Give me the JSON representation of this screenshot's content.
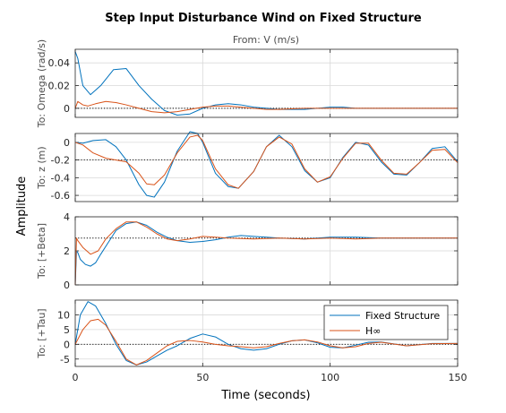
{
  "figure": {
    "title": "Step Input Disturbance Wind on Fixed Structure",
    "subtitle": "From: V (m/s)",
    "ylabel": "Amplitude",
    "xlabel": "Time (seconds)"
  },
  "legend": {
    "placement": "inside lower axes, top-right",
    "entries": [
      "Fixed Structure",
      "H∞"
    ]
  },
  "colors": {
    "fixed_structure": "#0072bd",
    "hinf": "#d95319",
    "grid": "#d9d9d9",
    "axes": "#262626",
    "steady_state_line": "#000000"
  },
  "chart_data": {
    "type": "line",
    "x_axis": {
      "label": "Time (seconds)",
      "range": [
        0,
        150
      ],
      "ticks": [
        0,
        50,
        100,
        150
      ]
    },
    "grid": true,
    "series_names": [
      "Fixed Structure",
      "H∞"
    ],
    "panels": [
      {
        "ylabel": "To: Omega (rad/s)",
        "ylim": [
          -0.008,
          0.052
        ],
        "yticks": [
          0,
          0.02,
          0.04
        ],
        "yticklabels": [
          "0",
          "0.02",
          "0.04"
        ],
        "steady_state": 0.0,
        "series": [
          {
            "name": "Fixed Structure",
            "x": [
              0,
              1,
              3,
              6,
              10,
              15,
              20,
              25,
              30,
              35,
              40,
              45,
              50,
              55,
              60,
              65,
              70,
              75,
              80,
              85,
              90,
              95,
              100,
              105,
              110,
              115,
              120,
              130,
              140,
              150
            ],
            "y": [
              0.05,
              0.044,
              0.02,
              0.012,
              0.02,
              0.034,
              0.035,
              0.02,
              0.008,
              -0.002,
              -0.006,
              -0.005,
              0.0,
              0.003,
              0.004,
              0.003,
              0.001,
              0.0,
              -0.001,
              -0.001,
              -0.001,
              0.0,
              0.001,
              0.001,
              0.0,
              0.0,
              0.0,
              0.0,
              0.0,
              0.0
            ]
          },
          {
            "name": "H∞",
            "x": [
              0,
              1,
              3,
              5,
              8,
              12,
              16,
              20,
              25,
              30,
              35,
              40,
              45,
              50,
              55,
              60,
              65,
              70,
              75,
              80,
              90,
              100,
              110,
              120,
              130,
              140,
              150
            ],
            "y": [
              0.0,
              0.006,
              0.003,
              0.002,
              0.004,
              0.006,
              0.005,
              0.003,
              0.0,
              -0.003,
              -0.004,
              -0.003,
              -0.001,
              0.001,
              0.002,
              0.002,
              0.001,
              0.0,
              -0.001,
              -0.001,
              0.0,
              0.0,
              0.0,
              0.0,
              0.0,
              0.0,
              0.0
            ]
          }
        ]
      },
      {
        "ylabel": "To: z (m)",
        "ylim": [
          -0.67,
          0.1
        ],
        "yticks": [
          0,
          -0.2,
          -0.4,
          -0.6
        ],
        "yticklabels": [
          "0",
          "-0.2",
          "-0.4",
          "-0.6"
        ],
        "steady_state": -0.2,
        "series": [
          {
            "name": "Fixed Structure",
            "x": [
              0,
              3,
              7,
              12,
              16,
              20,
              25,
              28,
              31,
              35,
              40,
              45,
              48,
              50,
              55,
              60,
              64,
              70,
              75,
              80,
              85,
              90,
              95,
              100,
              105,
              110,
              115,
              120,
              125,
              130,
              135,
              140,
              145,
              150
            ],
            "y": [
              0.0,
              -0.01,
              0.02,
              0.03,
              -0.05,
              -0.2,
              -0.48,
              -0.6,
              -0.62,
              -0.45,
              -0.1,
              0.12,
              0.1,
              0.0,
              -0.35,
              -0.5,
              -0.52,
              -0.33,
              -0.05,
              0.08,
              -0.05,
              -0.32,
              -0.45,
              -0.4,
              -0.17,
              0.0,
              -0.03,
              -0.22,
              -0.36,
              -0.37,
              -0.23,
              -0.07,
              -0.05,
              -0.22
            ]
          },
          {
            "name": "H∞",
            "x": [
              0,
              3,
              7,
              12,
              16,
              20,
              25,
              28,
              31,
              35,
              40,
              45,
              48,
              50,
              55,
              60,
              64,
              70,
              75,
              80,
              85,
              90,
              95,
              100,
              105,
              110,
              115,
              120,
              125,
              130,
              135,
              140,
              145,
              150
            ],
            "y": [
              0.0,
              -0.03,
              -0.12,
              -0.18,
              -0.2,
              -0.22,
              -0.35,
              -0.47,
              -0.48,
              -0.37,
              -0.12,
              0.06,
              0.08,
              0.02,
              -0.3,
              -0.48,
              -0.52,
              -0.33,
              -0.05,
              0.06,
              -0.02,
              -0.3,
              -0.45,
              -0.39,
              -0.18,
              -0.01,
              -0.01,
              -0.2,
              -0.35,
              -0.36,
              -0.23,
              -0.09,
              -0.08,
              -0.23
            ]
          }
        ]
      },
      {
        "ylabel": "To: [+Beta]",
        "ylim": [
          0,
          4
        ],
        "yticks": [
          0,
          2,
          4
        ],
        "yticklabels": [
          "0",
          "2",
          "4"
        ],
        "steady_state": 2.75,
        "series": [
          {
            "name": "Fixed Structure",
            "x": [
              0,
              0.5,
              1,
              2,
              4,
              6,
              8,
              10,
              13,
              16,
              20,
              24,
              28,
              32,
              36,
              40,
              45,
              50,
              55,
              60,
              65,
              70,
              75,
              80,
              90,
              100,
              110,
              120,
              130,
              140,
              150
            ],
            "y": [
              0.0,
              2.0,
              1.9,
              1.5,
              1.2,
              1.1,
              1.3,
              1.8,
              2.5,
              3.2,
              3.6,
              3.7,
              3.5,
              3.1,
              2.8,
              2.6,
              2.5,
              2.55,
              2.65,
              2.8,
              2.9,
              2.85,
              2.8,
              2.75,
              2.7,
              2.8,
              2.8,
              2.75,
              2.75,
              2.75,
              2.75
            ]
          },
          {
            "name": "H∞",
            "x": [
              0,
              0.5,
              1,
              3,
              6,
              9,
              12,
              16,
              20,
              24,
              28,
              32,
              36,
              40,
              45,
              50,
              55,
              60,
              70,
              80,
              90,
              100,
              110,
              120,
              130,
              140,
              150
            ],
            "y": [
              0.0,
              2.75,
              2.6,
              2.2,
              1.8,
              2.0,
              2.7,
              3.3,
              3.7,
              3.7,
              3.4,
              3.0,
              2.7,
              2.6,
              2.7,
              2.85,
              2.8,
              2.75,
              2.7,
              2.75,
              2.7,
              2.75,
              2.7,
              2.75,
              2.75,
              2.75,
              2.75
            ]
          }
        ]
      },
      {
        "ylabel": "To: [+Tau]",
        "ylim": [
          -7.5,
          15
        ],
        "yticks": [
          10,
          5,
          0,
          -5
        ],
        "yticklabels": [
          "10",
          "5",
          "0",
          "-5"
        ],
        "steady_state": 0.0,
        "series": [
          {
            "name": "Fixed Structure",
            "x": [
              0,
              2,
              5,
              8,
              12,
              16,
              20,
              24,
              28,
              32,
              36,
              40,
              45,
              50,
              55,
              60,
              65,
              70,
              75,
              80,
              85,
              90,
              95,
              100,
              105,
              110,
              115,
              120,
              130,
              140,
              150
            ],
            "y": [
              0.0,
              10.0,
              14.5,
              13.0,
              7.0,
              0.0,
              -5.5,
              -7.0,
              -6.0,
              -4.0,
              -2.0,
              -0.5,
              2.0,
              3.5,
              2.5,
              0.0,
              -1.5,
              -2.0,
              -1.5,
              0.0,
              1.2,
              1.5,
              0.5,
              -1.0,
              -1.2,
              -0.3,
              0.7,
              0.8,
              -0.5,
              0.3,
              0.3
            ]
          },
          {
            "name": "H∞",
            "x": [
              0,
              3,
              6,
              9,
              12,
              16,
              20,
              24,
              28,
              32,
              36,
              40,
              45,
              50,
              55,
              60,
              65,
              70,
              75,
              80,
              85,
              90,
              95,
              100,
              105,
              110,
              115,
              120,
              130,
              140,
              150
            ],
            "y": [
              0.0,
              5.0,
              8.0,
              8.5,
              6.5,
              1.0,
              -5.0,
              -7.0,
              -5.5,
              -3.0,
              -0.5,
              1.0,
              1.3,
              0.8,
              0.0,
              -0.5,
              -0.8,
              -1.2,
              -0.8,
              0.3,
              1.2,
              1.5,
              0.8,
              -0.5,
              -1.2,
              -0.8,
              0.3,
              0.7,
              -0.5,
              0.2,
              0.3
            ]
          }
        ]
      }
    ]
  }
}
